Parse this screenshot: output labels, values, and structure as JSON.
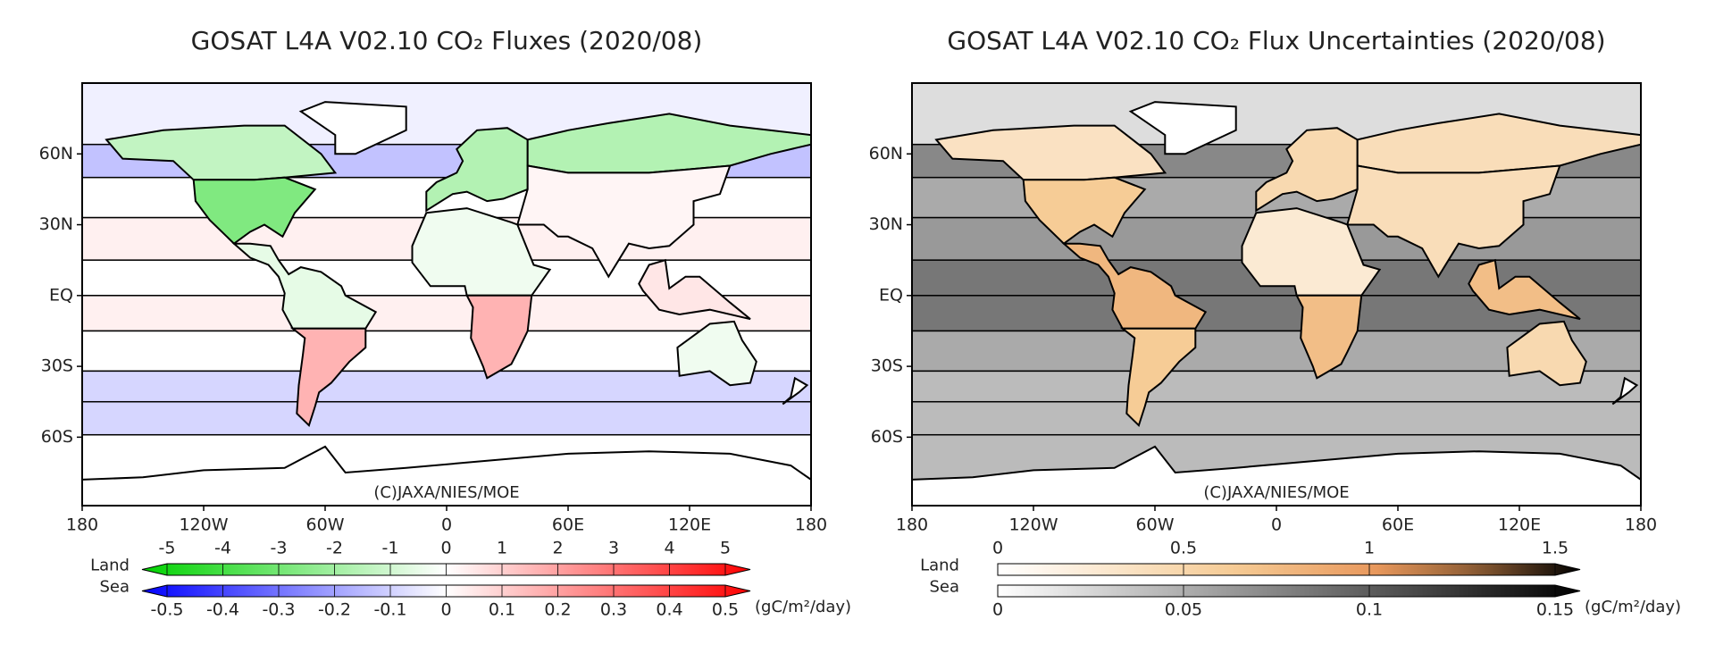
{
  "panels": [
    {
      "type": "map",
      "title": "GOSAT L4A V02.10 CO₂ Fluxes (2020/08)",
      "xlim": [
        -180,
        180
      ],
      "ylim": [
        -89,
        90
      ],
      "xticks": [
        {
          "value": -180,
          "label": "180"
        },
        {
          "value": -120,
          "label": "120W"
        },
        {
          "value": -60,
          "label": "60W"
        },
        {
          "value": 0,
          "label": "0"
        },
        {
          "value": 60,
          "label": "60E"
        },
        {
          "value": 120,
          "label": "120E"
        },
        {
          "value": 180,
          "label": "180"
        }
      ],
      "yticks": [
        {
          "value": 60,
          "label": "60N"
        },
        {
          "value": 30,
          "label": "30N"
        },
        {
          "value": 0,
          "label": "EQ"
        },
        {
          "value": -30,
          "label": "30S"
        },
        {
          "value": -60,
          "label": "60S"
        }
      ],
      "copyright": "(C)JAXA/NIES/MOE",
      "colormap": "diverging",
      "extend": "both",
      "land_label": "Land",
      "sea_label": "Sea",
      "units": "(gC/m²/day)",
      "land_ticks": [
        -5,
        -4,
        -3,
        -2,
        -1,
        0,
        1,
        2,
        3,
        4,
        5
      ],
      "sea_ticks": [
        -0.5,
        -0.4,
        -0.3,
        -0.2,
        -0.1,
        0,
        0.1,
        0.2,
        0.3,
        0.4,
        0.5
      ],
      "ocean_values": [
        -0.03,
        -0.12,
        0,
        0.03,
        0,
        0.03,
        0,
        -0.08,
        -0.08,
        0
      ],
      "land_values": [
        -1.2,
        -2.5,
        -0.5,
        1.5,
        -1.5,
        -1.5,
        0.2,
        -0.3,
        1.5,
        0.5,
        -0.3
      ]
    },
    {
      "type": "map",
      "title": "GOSAT L4A V02.10 CO₂ Flux Uncertainties (2020/08)",
      "xlim": [
        -180,
        180
      ],
      "ylim": [
        -89,
        90
      ],
      "xticks": [
        {
          "value": -180,
          "label": "180"
        },
        {
          "value": -120,
          "label": "120W"
        },
        {
          "value": -60,
          "label": "60W"
        },
        {
          "value": 0,
          "label": "0"
        },
        {
          "value": 60,
          "label": "60E"
        },
        {
          "value": 120,
          "label": "120E"
        },
        {
          "value": 180,
          "label": "180"
        }
      ],
      "yticks": [
        {
          "value": 60,
          "label": "60N"
        },
        {
          "value": 30,
          "label": "30N"
        },
        {
          "value": 0,
          "label": "EQ"
        },
        {
          "value": -30,
          "label": "30S"
        },
        {
          "value": -60,
          "label": "60S"
        }
      ],
      "copyright": "(C)JAXA/NIES/MOE",
      "colormap": "sequential",
      "extend": "max",
      "land_label": "Land",
      "sea_label": "Sea",
      "units": "(gC/m²/day)",
      "land_ticks": [
        0,
        0.5,
        1,
        1.5
      ],
      "sea_ticks": [
        0,
        0.05,
        0.1,
        0.15
      ],
      "ocean_values": [
        0.02,
        0.07,
        0.05,
        0.06,
        0.08,
        0.08,
        0.05,
        0.04,
        0.04,
        0.04
      ],
      "land_values": [
        0.35,
        0.6,
        0.75,
        0.6,
        0.45,
        0.4,
        0.4,
        0.25,
        0.7,
        0.7,
        0.45
      ]
    }
  ]
}
